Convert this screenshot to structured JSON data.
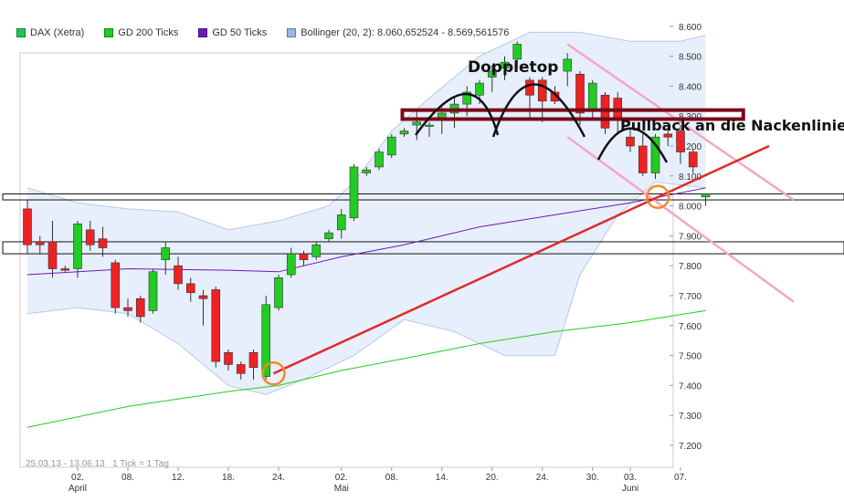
{
  "legend": [
    {
      "label": "DAX (Xetra)",
      "color": "#22c35c"
    },
    {
      "label": "GD 200 Ticks",
      "color": "#22cc22"
    },
    {
      "label": "GD 50 Ticks",
      "color": "#6a1ab8"
    },
    {
      "label": "Bollinger (20, 2): 8.060,652524 - 8.569,561576",
      "color": "#9bb7e6"
    }
  ],
  "annotations": {
    "doppeltop": "Doppletop",
    "pullback": "Pullback an die Nackenlinie"
  },
  "footer": {
    "range": "25.03.13 - 13.06.13",
    "tick": "1 Tick = 1 Tag"
  },
  "chart_data": {
    "type": "candlestick",
    "title": "",
    "ylim": [
      7150,
      8700
    ],
    "y_ticks": [
      7200,
      7300,
      7400,
      7500,
      7600,
      7700,
      7800,
      7900,
      8000,
      8100,
      8200,
      8300,
      8400,
      8500,
      8600
    ],
    "y_tick_labels": [
      "7.200",
      "7.300",
      "7.400",
      "7.500",
      "7.600",
      "7.700",
      "7.800",
      "7.900",
      "8.000",
      "8.100",
      "8.200",
      "8.300",
      "8.400",
      "8.500",
      "8.600"
    ],
    "x_tick_labels": [
      {
        "label": "02.",
        "sub": "April",
        "index": 4
      },
      {
        "label": "08.",
        "sub": "",
        "index": 8
      },
      {
        "label": "12.",
        "sub": "",
        "index": 12
      },
      {
        "label": "18.",
        "sub": "",
        "index": 16
      },
      {
        "label": "24.",
        "sub": "",
        "index": 20
      },
      {
        "label": "02.",
        "sub": "Mai",
        "index": 25
      },
      {
        "label": "08.",
        "sub": "",
        "index": 29
      },
      {
        "label": "14.",
        "sub": "",
        "index": 33
      },
      {
        "label": "20.",
        "sub": "",
        "index": 37
      },
      {
        "label": "24.",
        "sub": "",
        "index": 41
      },
      {
        "label": "30.",
        "sub": "",
        "index": 45
      },
      {
        "label": "03.",
        "sub": "Juni",
        "index": 48
      },
      {
        "label": "07.",
        "sub": "",
        "index": 52
      }
    ],
    "candles": [
      {
        "o": 7990,
        "h": 8020,
        "l": 7840,
        "c": 7870
      },
      {
        "o": 7880,
        "h": 7900,
        "l": 7840,
        "c": 7870
      },
      {
        "o": 7880,
        "h": 7950,
        "l": 7760,
        "c": 7790
      },
      {
        "o": 7790,
        "h": 7800,
        "l": 7780,
        "c": 7785
      },
      {
        "o": 7790,
        "h": 7950,
        "l": 7760,
        "c": 7940
      },
      {
        "o": 7920,
        "h": 7950,
        "l": 7850,
        "c": 7870
      },
      {
        "o": 7890,
        "h": 7930,
        "l": 7830,
        "c": 7860
      },
      {
        "o": 7810,
        "h": 7820,
        "l": 7640,
        "c": 7660
      },
      {
        "o": 7660,
        "h": 7690,
        "l": 7630,
        "c": 7650
      },
      {
        "o": 7690,
        "h": 7700,
        "l": 7610,
        "c": 7630
      },
      {
        "o": 7650,
        "h": 7790,
        "l": 7640,
        "c": 7780
      },
      {
        "o": 7820,
        "h": 7880,
        "l": 7770,
        "c": 7860
      },
      {
        "o": 7800,
        "h": 7830,
        "l": 7720,
        "c": 7740
      },
      {
        "o": 7740,
        "h": 7760,
        "l": 7680,
        "c": 7710
      },
      {
        "o": 7700,
        "h": 7720,
        "l": 7600,
        "c": 7690
      },
      {
        "o": 7720,
        "h": 7730,
        "l": 7460,
        "c": 7480
      },
      {
        "o": 7510,
        "h": 7520,
        "l": 7450,
        "c": 7470
      },
      {
        "o": 7470,
        "h": 7480,
        "l": 7420,
        "c": 7440
      },
      {
        "o": 7510,
        "h": 7520,
        "l": 7420,
        "c": 7460
      },
      {
        "o": 7430,
        "h": 7700,
        "l": 7420,
        "c": 7670
      },
      {
        "o": 7660,
        "h": 7770,
        "l": 7650,
        "c": 7760
      },
      {
        "o": 7770,
        "h": 7860,
        "l": 7760,
        "c": 7840
      },
      {
        "o": 7840,
        "h": 7850,
        "l": 7800,
        "c": 7820
      },
      {
        "o": 7830,
        "h": 7880,
        "l": 7820,
        "c": 7870
      },
      {
        "o": 7890,
        "h": 7920,
        "l": 7880,
        "c": 7910
      },
      {
        "o": 7920,
        "h": 7990,
        "l": 7890,
        "c": 7970
      },
      {
        "o": 7960,
        "h": 8140,
        "l": 7950,
        "c": 8130
      },
      {
        "o": 8110,
        "h": 8130,
        "l": 8100,
        "c": 8120
      },
      {
        "o": 8130,
        "h": 8190,
        "l": 8120,
        "c": 8180
      },
      {
        "o": 8170,
        "h": 8240,
        "l": 8160,
        "c": 8230
      },
      {
        "o": 8240,
        "h": 8260,
        "l": 8230,
        "c": 8250
      },
      {
        "o": 8270,
        "h": 8320,
        "l": 8220,
        "c": 8280
      },
      {
        "o": 8270,
        "h": 8280,
        "l": 8230,
        "c": 8270
      },
      {
        "o": 8290,
        "h": 8330,
        "l": 8240,
        "c": 8310
      },
      {
        "o": 8310,
        "h": 8360,
        "l": 8260,
        "c": 8340
      },
      {
        "o": 8340,
        "h": 8400,
        "l": 8300,
        "c": 8380
      },
      {
        "o": 8370,
        "h": 8420,
        "l": 8340,
        "c": 8410
      },
      {
        "o": 8430,
        "h": 8470,
        "l": 8380,
        "c": 8450
      },
      {
        "o": 8460,
        "h": 8500,
        "l": 8420,
        "c": 8480
      },
      {
        "o": 8490,
        "h": 8550,
        "l": 8460,
        "c": 8540
      },
      {
        "o": 8420,
        "h": 8430,
        "l": 8290,
        "c": 8370
      },
      {
        "o": 8420,
        "h": 8430,
        "l": 8280,
        "c": 8350
      },
      {
        "o": 8380,
        "h": 8400,
        "l": 8340,
        "c": 8350
      },
      {
        "o": 8450,
        "h": 8510,
        "l": 8400,
        "c": 8490
      },
      {
        "o": 8440,
        "h": 8450,
        "l": 8270,
        "c": 8310
      },
      {
        "o": 8320,
        "h": 8420,
        "l": 8290,
        "c": 8410
      },
      {
        "o": 8370,
        "h": 8380,
        "l": 8240,
        "c": 8260
      },
      {
        "o": 8360,
        "h": 8380,
        "l": 8240,
        "c": 8290
      },
      {
        "o": 8230,
        "h": 8260,
        "l": 8180,
        "c": 8200
      },
      {
        "o": 8200,
        "h": 8240,
        "l": 8100,
        "c": 8110
      },
      {
        "o": 8110,
        "h": 8240,
        "l": 8090,
        "c": 8230
      },
      {
        "o": 8240,
        "h": 8260,
        "l": 8200,
        "c": 8230
      },
      {
        "o": 8250,
        "h": 8270,
        "l": 8140,
        "c": 8180
      },
      {
        "o": 8180,
        "h": 8190,
        "l": 8110,
        "c": 8130
      },
      {
        "o": 8030,
        "h": 8040,
        "l": 8000,
        "c": 8040
      }
    ],
    "gd50": [
      {
        "i": 0,
        "v": 7770
      },
      {
        "i": 8,
        "v": 7790
      },
      {
        "i": 16,
        "v": 7785
      },
      {
        "i": 20,
        "v": 7780
      },
      {
        "i": 25,
        "v": 7830
      },
      {
        "i": 30,
        "v": 7870
      },
      {
        "i": 36,
        "v": 7930
      },
      {
        "i": 42,
        "v": 7970
      },
      {
        "i": 48,
        "v": 8010
      },
      {
        "i": 54,
        "v": 8060
      }
    ],
    "gd200": [
      {
        "i": 0,
        "v": 7260
      },
      {
        "i": 8,
        "v": 7330
      },
      {
        "i": 16,
        "v": 7380
      },
      {
        "i": 20,
        "v": 7400
      },
      {
        "i": 25,
        "v": 7450
      },
      {
        "i": 30,
        "v": 7490
      },
      {
        "i": 36,
        "v": 7540
      },
      {
        "i": 42,
        "v": 7580
      },
      {
        "i": 48,
        "v": 7610
      },
      {
        "i": 54,
        "v": 7650
      }
    ],
    "bollinger_upper": [
      {
        "i": 0,
        "v": 8060
      },
      {
        "i": 4,
        "v": 8010
      },
      {
        "i": 8,
        "v": 7990
      },
      {
        "i": 12,
        "v": 7980
      },
      {
        "i": 16,
        "v": 7920
      },
      {
        "i": 20,
        "v": 7950
      },
      {
        "i": 24,
        "v": 8000
      },
      {
        "i": 26,
        "v": 8080
      },
      {
        "i": 29,
        "v": 8250
      },
      {
        "i": 32,
        "v": 8360
      },
      {
        "i": 36,
        "v": 8500
      },
      {
        "i": 40,
        "v": 8580
      },
      {
        "i": 44,
        "v": 8580
      },
      {
        "i": 48,
        "v": 8550
      },
      {
        "i": 52,
        "v": 8550
      },
      {
        "i": 54,
        "v": 8570
      }
    ],
    "bollinger_lower": [
      {
        "i": 0,
        "v": 7640
      },
      {
        "i": 4,
        "v": 7660
      },
      {
        "i": 8,
        "v": 7640
      },
      {
        "i": 12,
        "v": 7540
      },
      {
        "i": 16,
        "v": 7400
      },
      {
        "i": 19,
        "v": 7370
      },
      {
        "i": 22,
        "v": 7420
      },
      {
        "i": 26,
        "v": 7500
      },
      {
        "i": 30,
        "v": 7620
      },
      {
        "i": 34,
        "v": 7580
      },
      {
        "i": 38,
        "v": 7500
      },
      {
        "i": 42,
        "v": 7500
      },
      {
        "i": 44,
        "v": 7770
      },
      {
        "i": 47,
        "v": 7970
      },
      {
        "i": 50,
        "v": 8080
      },
      {
        "i": 54,
        "v": 8060
      }
    ],
    "levels": [
      {
        "kind": "box",
        "y1": 8020,
        "y2": 8040
      },
      {
        "kind": "box",
        "y1": 7840,
        "y2": 7880
      }
    ],
    "neckline": {
      "y1": 8290,
      "y2": 8320,
      "i_from": 38,
      "i_to": 57
    },
    "trend_up": {
      "i1": 19.6,
      "v1": 7440,
      "i2": 55,
      "v2": 8290
    },
    "channel_lines": [
      {
        "i1": 43,
        "v1": 8540,
        "i2": 61,
        "v2": 8020
      },
      {
        "i1": 43,
        "v1": 8230,
        "i2": 61,
        "v2": 7680
      }
    ],
    "circles": [
      {
        "i": 19.6,
        "v": 7440
      },
      {
        "i": 50.2,
        "v": 8030
      }
    ]
  }
}
